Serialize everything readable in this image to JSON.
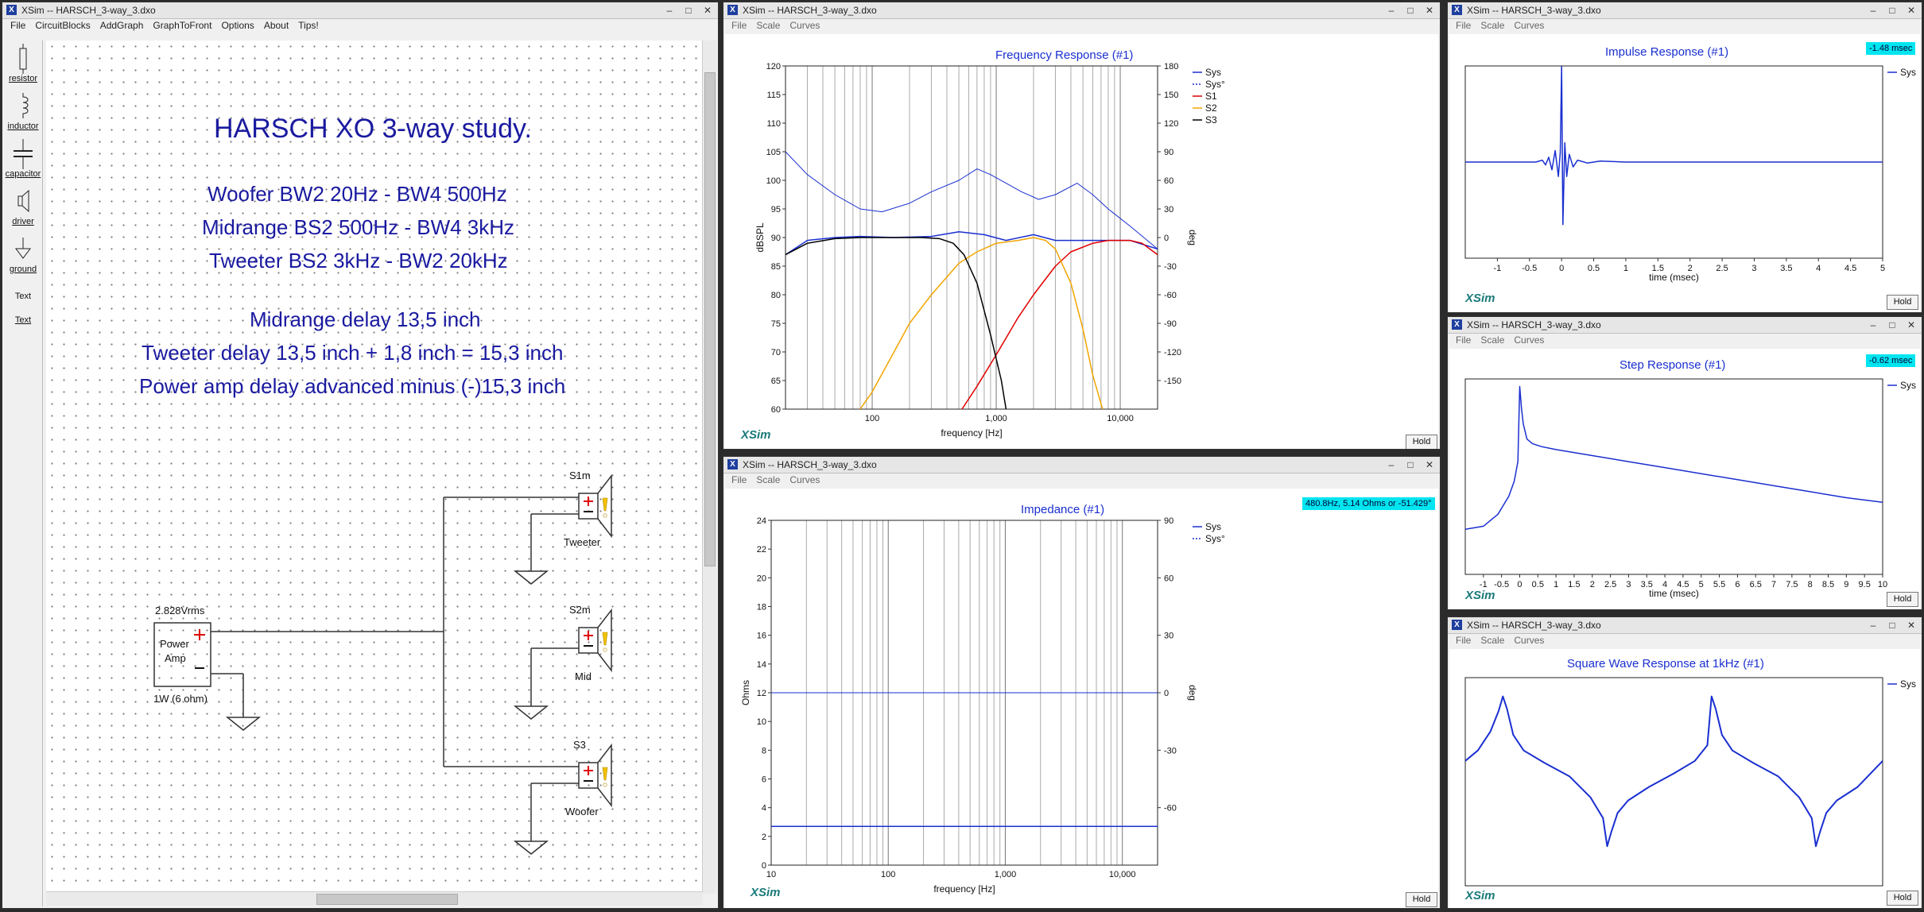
{
  "colors": {
    "sys": "#1a2fd0",
    "s1": "#e00000",
    "s2": "#f2a500",
    "s3": "#000000",
    "readout": "#00e5f0"
  },
  "menu": {
    "file": "File",
    "scale": "Scale",
    "curves": "Curves"
  },
  "hold": "Hold",
  "brand": "XSim",
  "main": {
    "title": "XSim -- HARSCH_3-way_3.dxo",
    "menu": [
      "File",
      "CircuitBlocks",
      "AddGraph",
      "GraphToFront",
      "Options",
      "About",
      "Tips!"
    ],
    "tools": [
      {
        "label": "resistor",
        "icon": "resistor-icon"
      },
      {
        "label": "inductor",
        "icon": "inductor-icon"
      },
      {
        "label": "capacitor",
        "icon": "capacitor-icon"
      },
      {
        "label": "driver",
        "icon": "driver-icon"
      },
      {
        "label": "ground",
        "icon": "ground-icon"
      },
      {
        "label": "Text",
        "icon": ""
      },
      {
        "label": "Text",
        "icon": ""
      }
    ],
    "heading": "HARSCH XO 3-way study.",
    "lines": [
      "Woofer BW2 20Hz - BW4 500Hz",
      "Midrange BS2 500Hz - BW4 3kHz",
      "Tweeter BS2 3kHz - BW2 20kHz",
      "Midrange delay 13,5 inch",
      "Tweeter delay 13,5 inch + 1,8 inch = 15,3 inch",
      "Power amp delay advanced minus (-)15,3 inch"
    ],
    "amp": {
      "voltage": "2.828Vrms",
      "label1": "Power",
      "label2": "Amp",
      "rating": "1W (6 ohm)"
    },
    "drivers": [
      {
        "name": "S1m",
        "role": "Tweeter"
      },
      {
        "name": "S2m",
        "role": "Mid"
      },
      {
        "name": "S3",
        "role": "Woofer"
      }
    ]
  },
  "freq": {
    "title_bar": "XSim -- HARSCH_3-way_3.dxo",
    "chart_data": {
      "type": "line",
      "title": "Frequency Response (#1)",
      "xlabel": "frequency [Hz]",
      "ylabel": "dBSPL",
      "y2label": "deg",
      "xscale": "log",
      "xlim": [
        20,
        20000
      ],
      "ylim": [
        60,
        120
      ],
      "y2lim": [
        -180,
        180
      ],
      "xticks": [
        "100",
        "1,000",
        "10,000"
      ],
      "yticks": [
        60,
        65,
        70,
        75,
        80,
        85,
        90,
        95,
        100,
        105,
        110,
        115,
        120
      ],
      "y2ticks": [
        -150,
        -120,
        -90,
        -60,
        -30,
        0,
        30,
        60,
        90,
        120,
        150,
        180
      ],
      "legend": [
        "Sys",
        "Sys°",
        "S1",
        "S2",
        "S3"
      ],
      "series": [
        {
          "name": "Sys",
          "axis": "y",
          "color": "#1a2fd0",
          "x": [
            20,
            30,
            50,
            80,
            150,
            300,
            500,
            800,
            1200,
            2000,
            3000,
            5000,
            8000,
            12000,
            20000
          ],
          "y": [
            87,
            89.5,
            90,
            90.2,
            90,
            90.2,
            91,
            90.5,
            89.5,
            90.5,
            89.5,
            89.5,
            89.5,
            89.5,
            88
          ]
        },
        {
          "name": "Sys°",
          "axis": "y2",
          "color": "#1a2fd0",
          "x": [
            20,
            30,
            50,
            80,
            120,
            200,
            300,
            500,
            700,
            900,
            1200,
            1600,
            2200,
            3000,
            4500,
            6000,
            8000,
            12000,
            20000
          ],
          "y": [
            90,
            66,
            45,
            30,
            27,
            36,
            48,
            60,
            72,
            66,
            57,
            48,
            40,
            45,
            57,
            45,
            30,
            12,
            -12
          ]
        },
        {
          "name": "S1",
          "axis": "y",
          "color": "#e00000",
          "x": [
            530,
            700,
            1000,
            1500,
            2000,
            3000,
            4000,
            6000,
            8000,
            12000,
            15000,
            20000
          ],
          "y": [
            60,
            64,
            69.5,
            76,
            80,
            85,
            87.5,
            89,
            89.5,
            89.5,
            89,
            87
          ]
        },
        {
          "name": "S2",
          "axis": "y",
          "color": "#f2a500",
          "x": [
            80,
            100,
            150,
            200,
            300,
            500,
            700,
            1000,
            1500,
            2000,
            2500,
            3000,
            4000,
            5000,
            6000,
            7200
          ],
          "y": [
            60,
            63,
            70,
            75,
            80,
            85.5,
            87.5,
            89,
            89.5,
            90,
            89.5,
            88,
            82,
            74,
            66,
            60
          ]
        },
        {
          "name": "S3",
          "axis": "y",
          "color": "#000000",
          "x": [
            20,
            30,
            50,
            80,
            150,
            250,
            350,
            450,
            550,
            700,
            900,
            1100,
            1200
          ],
          "y": [
            87,
            89,
            89.8,
            90,
            90,
            90,
            89.8,
            89,
            87,
            82,
            73,
            65,
            60
          ]
        }
      ]
    }
  },
  "imp": {
    "title_bar": "XSim -- HARSCH_3-way_3.dxo",
    "readout": "480.8Hz, 5.14 Ohms or -51.429°",
    "chart_data": {
      "type": "line",
      "title": "Impedance (#1)",
      "xlabel": "frequency [Hz]",
      "ylabel": "Ohms",
      "y2label": "deg",
      "xscale": "log",
      "xlim": [
        10,
        20000
      ],
      "ylim": [
        0,
        24
      ],
      "y2lim": [
        -90,
        90
      ],
      "xticks": [
        "10",
        "100",
        "1,000",
        "10,000"
      ],
      "yticks": [
        0,
        2,
        4,
        6,
        8,
        10,
        12,
        14,
        16,
        18,
        20,
        22,
        24
      ],
      "y2ticks": [
        -60,
        -30,
        0,
        30,
        60,
        90
      ],
      "legend": [
        "Sys",
        "Sys°"
      ],
      "series": [
        {
          "name": "Sys",
          "axis": "y",
          "color": "#1a2fd0",
          "x": [
            10,
            20000
          ],
          "y": [
            2.7,
            2.7
          ]
        },
        {
          "name": "Sys°",
          "axis": "y2",
          "color": "#1a2fd0",
          "x": [
            10,
            20000
          ],
          "y": [
            0,
            0
          ]
        }
      ]
    }
  },
  "impulse": {
    "title_bar": "XSim -- HARSCH_3-way_3.dxo",
    "readout": "-1.48 msec",
    "chart_data": {
      "type": "line",
      "title": "Impulse Response (#1)",
      "xlabel": "time (msec)",
      "xlim": [
        -1.5,
        5
      ],
      "ylim": [
        -1,
        1
      ],
      "xticks": [
        "-1",
        "-0.5",
        "0",
        "0.5",
        "1",
        "1.5",
        "2",
        "2.5",
        "3",
        "3.5",
        "4",
        "4.5",
        "5"
      ],
      "legend": [
        "Sys"
      ],
      "series": [
        {
          "name": "Sys",
          "color": "#1a2fd0",
          "x": [
            -1.5,
            -0.4,
            -0.3,
            -0.25,
            -0.2,
            -0.15,
            -0.1,
            -0.05,
            -0.02,
            0,
            0.02,
            0.05,
            0.08,
            0.12,
            0.18,
            0.25,
            0.4,
            0.6,
            1,
            2,
            5
          ],
          "y": [
            0,
            0,
            0.02,
            -0.03,
            0.05,
            -0.08,
            0.12,
            -0.15,
            0.1,
            1,
            -0.65,
            0.2,
            -0.15,
            0.08,
            -0.05,
            0.02,
            -0.01,
            0.01,
            0,
            0,
            0
          ]
        }
      ]
    }
  },
  "step": {
    "title_bar": "XSim -- HARSCH_3-way_3.dxo",
    "readout": "-0.62 msec",
    "chart_data": {
      "type": "line",
      "title": "Step Response (#1)",
      "xlabel": "time (msec)",
      "xlim": [
        -1.5,
        10
      ],
      "ylim": [
        -0.3,
        1
      ],
      "xticks": [
        "-1",
        "-0.5",
        "0",
        "0.5",
        "1",
        "1.5",
        "2",
        "2.5",
        "3",
        "3.5",
        "4",
        "4.5",
        "5",
        "5.5",
        "6",
        "6.5",
        "7",
        "7.5",
        "8",
        "8.5",
        "9",
        "9.5",
        "10"
      ],
      "legend": [
        "Sys"
      ],
      "series": [
        {
          "name": "Sys",
          "color": "#1a2fd0",
          "x": [
            -1.5,
            -1,
            -0.6,
            -0.3,
            -0.15,
            -0.05,
            0,
            0.05,
            0.1,
            0.2,
            0.35,
            0.6,
            1,
            2,
            3,
            4,
            5,
            6,
            7,
            8,
            9,
            10
          ],
          "y": [
            0,
            0.02,
            0.1,
            0.22,
            0.32,
            0.45,
            0.95,
            0.8,
            0.7,
            0.6,
            0.57,
            0.55,
            0.53,
            0.49,
            0.45,
            0.41,
            0.37,
            0.33,
            0.29,
            0.25,
            0.21,
            0.18
          ]
        }
      ]
    }
  },
  "square": {
    "title_bar": "XSim -- HARSCH_3-way_3.dxo",
    "chart_data": {
      "type": "line",
      "title": "Square Wave Response at 1kHz (#1)",
      "xlim": [
        0,
        2
      ],
      "ylim": [
        -1,
        1
      ],
      "legend": [
        "Sys"
      ],
      "series": [
        {
          "name": "Sys",
          "color": "#1a2fd0",
          "x": [
            0,
            0.06,
            0.12,
            0.16,
            0.18,
            0.2,
            0.23,
            0.28,
            0.38,
            0.5,
            0.6,
            0.66,
            0.68,
            0.7,
            0.73,
            0.78,
            0.88,
            1,
            1.1,
            1.16,
            1.18,
            1.2,
            1.23,
            1.28,
            1.38,
            1.5,
            1.6,
            1.66,
            1.68,
            1.7,
            1.73,
            1.78,
            1.88,
            2
          ],
          "y": [
            0.2,
            0.3,
            0.48,
            0.68,
            0.82,
            0.7,
            0.45,
            0.3,
            0.18,
            0.05,
            -0.15,
            -0.35,
            -0.62,
            -0.48,
            -0.3,
            -0.18,
            -0.05,
            0.08,
            0.2,
            0.35,
            0.82,
            0.7,
            0.45,
            0.3,
            0.18,
            0.05,
            -0.15,
            -0.35,
            -0.62,
            -0.48,
            -0.3,
            -0.18,
            -0.05,
            0.2
          ]
        }
      ]
    }
  }
}
